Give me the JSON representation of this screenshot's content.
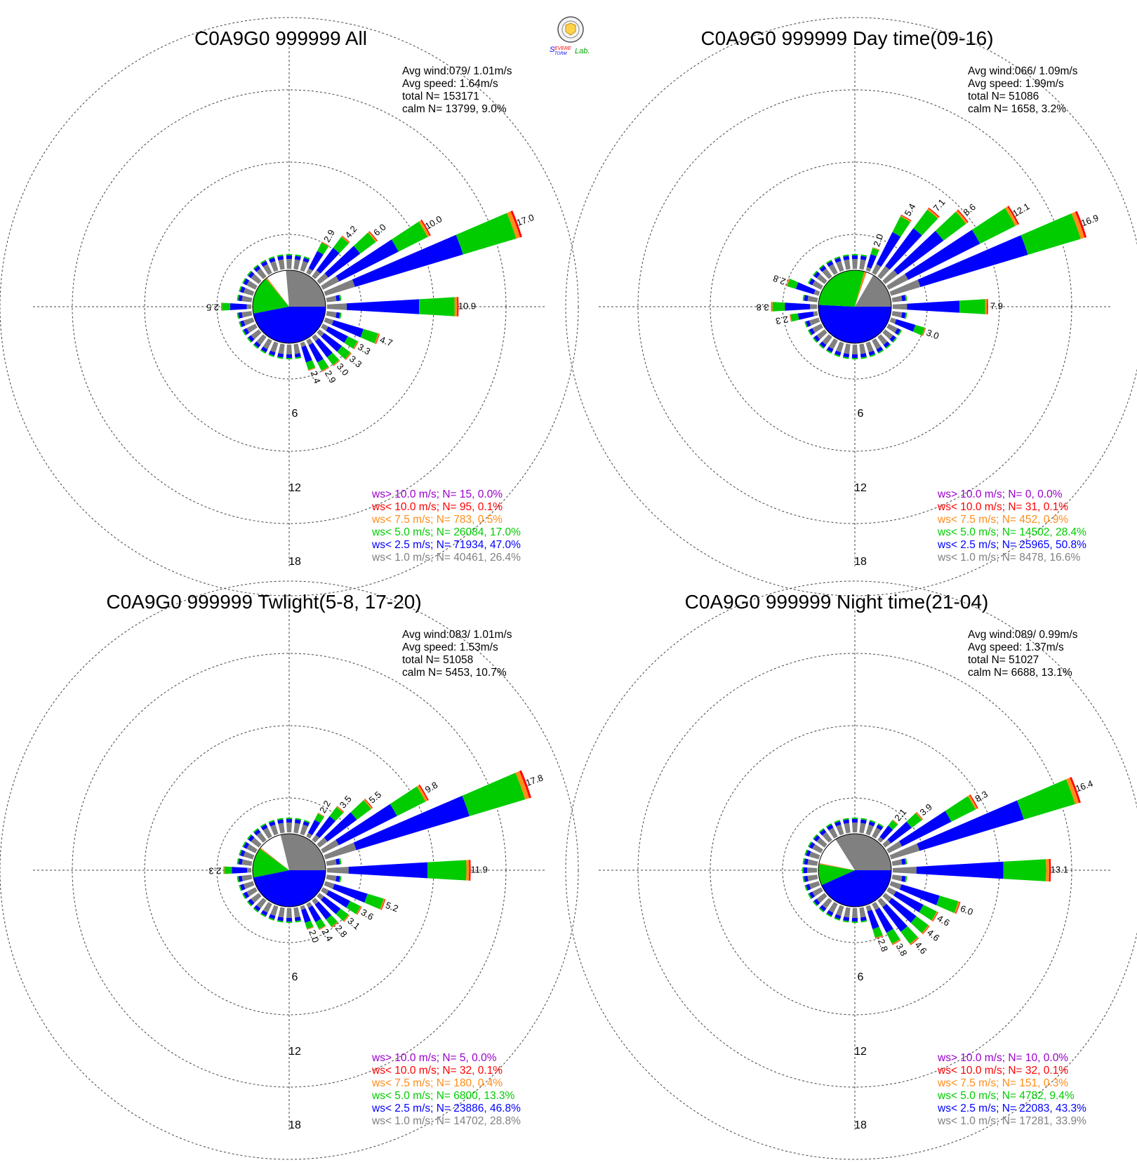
{
  "logo": {
    "text": "Severe Storm Lab."
  },
  "colors": {
    "gt10": "#9900cc",
    "lt10": "#ff0000",
    "lt7_5": "#ff8c1a",
    "lt5": "#00cc00",
    "lt2_5": "#0000ff",
    "lt1": "#808080",
    "text": "#000000"
  },
  "panels": [
    {
      "title": "C0A9G0 999999 All",
      "stats": [
        "Avg wind:079/ 1.01m/s",
        "Avg speed: 1.64m/s",
        "total N=      153171",
        "calm N=  13799,   9.0%"
      ],
      "legend": [
        {
          "text": "ws> 10.0 m/s; N=    15,  0.0%",
          "color": "gt10"
        },
        {
          "text": "ws< 10.0 m/s; N=    95,  0.1%",
          "color": "lt10"
        },
        {
          "text": "ws<  7.5 m/s; N=   783,  0.5%",
          "color": "lt7_5"
        },
        {
          "text": "ws<  5.0 m/s; N= 26084, 17.0%",
          "color": "lt5"
        },
        {
          "text": "ws<  2.5 m/s; N= 71934, 47.0%",
          "color": "lt2_5"
        },
        {
          "text": "ws<  1.0 m/s; N= 40461, 26.4%",
          "color": "lt1"
        }
      ],
      "pie": [
        26.4,
        47.0,
        17.0,
        0.5,
        0.1,
        0.0
      ],
      "petals": [
        {
          "dir": 70,
          "total": 17.0,
          "label": "17.0"
        },
        {
          "dir": 60,
          "total": 10.0,
          "label": "10.0"
        },
        {
          "dir": 50,
          "total": 6.0,
          "label": "6.0"
        },
        {
          "dir": 40,
          "total": 4.2,
          "label": "4.2"
        },
        {
          "dir": 30,
          "total": 2.9,
          "label": "2.9"
        },
        {
          "dir": 90,
          "total": 10.9,
          "label": "10.9"
        },
        {
          "dir": 110,
          "total": 4.7,
          "label": "4.7"
        },
        {
          "dir": 120,
          "total": 3.3,
          "label": "3.3"
        },
        {
          "dir": 130,
          "total": 3.3,
          "label": "3.3"
        },
        {
          "dir": 140,
          "total": 3.0,
          "label": "3.0"
        },
        {
          "dir": 150,
          "total": 2.9,
          "label": "2.9"
        },
        {
          "dir": 160,
          "total": 2.4,
          "label": "2.4"
        },
        {
          "dir": 270,
          "total": 2.5,
          "label": "2.5"
        }
      ],
      "rings": [
        "6",
        "12",
        "18"
      ]
    },
    {
      "title": "C0A9G0 999999 Day time(09-16)",
      "stats": [
        "Avg wind:066/ 1.09m/s",
        "Avg speed: 1.99m/s",
        "total N=       51086",
        "calm N=   1658,   3.2%"
      ],
      "legend": [
        {
          "text": "ws> 10.0 m/s; N=     0,  0.0%",
          "color": "gt10"
        },
        {
          "text": "ws< 10.0 m/s; N=    31,  0.1%",
          "color": "lt10"
        },
        {
          "text": "ws<  7.5 m/s; N=   452,  0.9%",
          "color": "lt7_5"
        },
        {
          "text": "ws<  5.0 m/s; N= 14502, 28.4%",
          "color": "lt5"
        },
        {
          "text": "ws<  2.5 m/s; N= 25965, 50.8%",
          "color": "lt2_5"
        },
        {
          "text": "ws<  1.0 m/s; N=  8478, 16.6%",
          "color": "lt1"
        }
      ],
      "pie": [
        16.6,
        50.8,
        28.4,
        0.9,
        0.1,
        0.0
      ],
      "petals": [
        {
          "dir": 70,
          "total": 16.9,
          "label": "16.9"
        },
        {
          "dir": 60,
          "total": 12.1,
          "label": "12.1"
        },
        {
          "dir": 50,
          "total": 8.6,
          "label": "8.6"
        },
        {
          "dir": 40,
          "total": 7.1,
          "label": "7.1"
        },
        {
          "dir": 30,
          "total": 5.4,
          "label": "5.4"
        },
        {
          "dir": 20,
          "total": 2.0,
          "label": "2.0"
        },
        {
          "dir": 90,
          "total": 7.9,
          "label": "7.9"
        },
        {
          "dir": 110,
          "total": 3.0,
          "label": "3.0"
        },
        {
          "dir": 260,
          "total": 2.3,
          "label": "2.3"
        },
        {
          "dir": 270,
          "total": 3.8,
          "label": "3.8"
        },
        {
          "dir": 290,
          "total": 2.8,
          "label": "2.8"
        }
      ],
      "rings": [
        "6",
        "12",
        "18"
      ]
    },
    {
      "title": "C0A9G0 999999 Twlight(5-8, 17-20)",
      "stats": [
        "Avg wind:083/ 1.01m/s",
        "Avg speed: 1.53m/s",
        "total N=       51058",
        "calm N=   5453,  10.7%"
      ],
      "legend": [
        {
          "text": "ws> 10.0 m/s; N=     5,  0.0%",
          "color": "gt10"
        },
        {
          "text": "ws< 10.0 m/s; N=    32,  0.1%",
          "color": "lt10"
        },
        {
          "text": "ws<  7.5 m/s; N=   180,  0.4%",
          "color": "lt7_5"
        },
        {
          "text": "ws<  5.0 m/s; N=  6800, 13.3%",
          "color": "lt5"
        },
        {
          "text": "ws<  2.5 m/s; N= 23886, 46.8%",
          "color": "lt2_5"
        },
        {
          "text": "ws<  1.0 m/s; N= 14702, 28.8%",
          "color": "lt1"
        }
      ],
      "pie": [
        28.8,
        46.8,
        13.3,
        0.4,
        0.1,
        0.0
      ],
      "petals": [
        {
          "dir": 70,
          "total": 17.8,
          "label": "17.8"
        },
        {
          "dir": 60,
          "total": 9.8,
          "label": "9.8"
        },
        {
          "dir": 50,
          "total": 5.5,
          "label": "5.5"
        },
        {
          "dir": 40,
          "total": 3.5,
          "label": "3.5"
        },
        {
          "dir": 30,
          "total": 2.2,
          "label": "2.2"
        },
        {
          "dir": 90,
          "total": 11.9,
          "label": "11.9"
        },
        {
          "dir": 110,
          "total": 5.2,
          "label": "5.2"
        },
        {
          "dir": 120,
          "total": 3.6,
          "label": "3.6"
        },
        {
          "dir": 130,
          "total": 3.1,
          "label": "3.1"
        },
        {
          "dir": 140,
          "total": 2.8,
          "label": "2.8"
        },
        {
          "dir": 150,
          "total": 2.4,
          "label": "2.4"
        },
        {
          "dir": 160,
          "total": 2.0,
          "label": "2.0"
        },
        {
          "dir": 270,
          "total": 2.3,
          "label": "2.3"
        }
      ],
      "rings": [
        "6",
        "12",
        "18"
      ]
    },
    {
      "title": "C0A9G0 999999 Night time(21-04)",
      "stats": [
        "Avg wind:089/ 0.99m/s",
        "Avg speed: 1.37m/s",
        "total N=       51027",
        "calm N=   6688,  13.1%"
      ],
      "legend": [
        {
          "text": "ws> 10.0 m/s; N=    10,  0.0%",
          "color": "gt10"
        },
        {
          "text": "ws< 10.0 m/s; N=    32,  0.1%",
          "color": "lt10"
        },
        {
          "text": "ws<  7.5 m/s; N=   151,  0.3%",
          "color": "lt7_5"
        },
        {
          "text": "ws<  5.0 m/s; N=  4782,  9.4%",
          "color": "lt5"
        },
        {
          "text": "ws<  2.5 m/s; N= 22083, 43.3%",
          "color": "lt2_5"
        },
        {
          "text": "ws<  1.0 m/s; N= 17281, 33.9%",
          "color": "lt1"
        }
      ],
      "pie": [
        33.9,
        43.3,
        9.4,
        0.3,
        0.1,
        0.0
      ],
      "petals": [
        {
          "dir": 70,
          "total": 16.4,
          "label": "16.4"
        },
        {
          "dir": 60,
          "total": 8.3,
          "label": "8.3"
        },
        {
          "dir": 50,
          "total": 3.9,
          "label": "3.9"
        },
        {
          "dir": 40,
          "total": 2.1,
          "label": "2.1"
        },
        {
          "dir": 90,
          "total": 13.1,
          "label": "13.1"
        },
        {
          "dir": 110,
          "total": 6.0,
          "label": "6.0"
        },
        {
          "dir": 120,
          "total": 4.6,
          "label": "4.6"
        },
        {
          "dir": 130,
          "total": 4.6,
          "label": "4.6"
        },
        {
          "dir": 140,
          "total": 4.6,
          "label": "4.6"
        },
        {
          "dir": 150,
          "total": 3.8,
          "label": "3.8"
        },
        {
          "dir": 160,
          "total": 2.8,
          "label": "2.8"
        }
      ],
      "rings": [
        "6",
        "12",
        "18"
      ]
    }
  ],
  "chart_data": [
    {
      "type": "windrose",
      "title": "C0A9G0 999999 All",
      "radial_ticks": [
        6,
        12,
        18
      ],
      "directions_deg": [
        30,
        40,
        50,
        60,
        70,
        90,
        110,
        120,
        130,
        140,
        150,
        160,
        270
      ],
      "frequency_percent": [
        2.9,
        4.2,
        6.0,
        10.0,
        17.0,
        10.9,
        4.7,
        3.3,
        3.3,
        3.0,
        2.9,
        2.4,
        2.5
      ]
    },
    {
      "type": "windrose",
      "title": "C0A9G0 999999 Day time(09-16)",
      "radial_ticks": [
        6,
        12,
        18
      ],
      "directions_deg": [
        20,
        30,
        40,
        50,
        60,
        70,
        90,
        110,
        260,
        270,
        290
      ],
      "frequency_percent": [
        2.0,
        5.4,
        7.1,
        8.6,
        12.1,
        16.9,
        7.9,
        3.0,
        2.3,
        3.8,
        2.8
      ]
    },
    {
      "type": "windrose",
      "title": "C0A9G0 999999 Twlight(5-8, 17-20)",
      "radial_ticks": [
        6,
        12,
        18
      ],
      "directions_deg": [
        30,
        40,
        50,
        60,
        70,
        90,
        110,
        120,
        130,
        140,
        150,
        160,
        270
      ],
      "frequency_percent": [
        2.2,
        3.5,
        5.5,
        9.8,
        17.8,
        11.9,
        5.2,
        3.6,
        3.1,
        2.8,
        2.4,
        2.0,
        2.3
      ]
    },
    {
      "type": "windrose",
      "title": "C0A9G0 999999 Night time(21-04)",
      "radial_ticks": [
        6,
        12,
        18
      ],
      "directions_deg": [
        40,
        50,
        60,
        70,
        90,
        110,
        120,
        130,
        140,
        150,
        160
      ],
      "frequency_percent": [
        2.1,
        3.9,
        8.3,
        16.4,
        13.1,
        6.0,
        4.6,
        4.6,
        4.6,
        3.8,
        2.8
      ]
    }
  ]
}
